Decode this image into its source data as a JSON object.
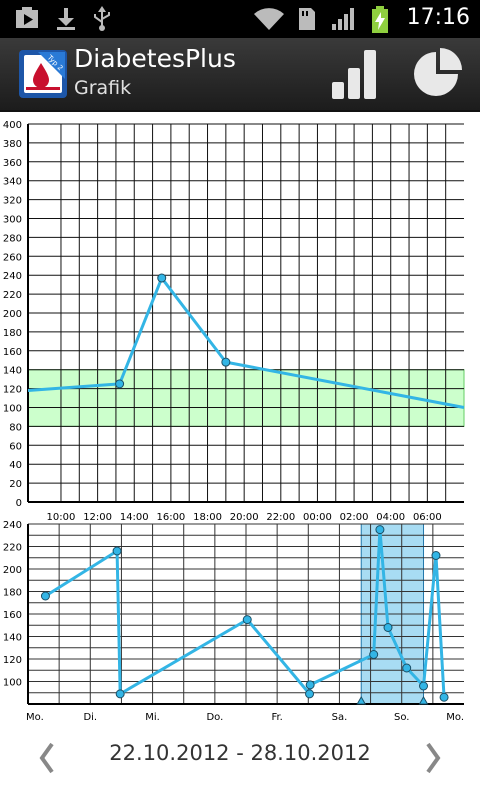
{
  "status_bar": {
    "time": "17:16",
    "icons": [
      "media-play-icon",
      "download-icon",
      "usb-icon",
      "wifi-icon",
      "sd-card-icon",
      "signal-icon",
      "battery-charging-icon"
    ]
  },
  "action_bar": {
    "title": "DiabetesPlus",
    "subtitle": "Grafik",
    "logo_badge": "Typ 2",
    "actions": [
      "bar-chart-icon",
      "pie-chart-icon"
    ]
  },
  "colors": {
    "line": "#33b5e5",
    "target_band": "#ccffcc",
    "target_band_border": "#66cc66",
    "selection": "#a8dcf3",
    "selection_border": "#2277aa"
  },
  "chart_data": [
    {
      "type": "line",
      "ylim": [
        0,
        400
      ],
      "yticks": [
        "0",
        "20",
        "40",
        "60",
        "80",
        "100",
        "120",
        "140",
        "160",
        "180",
        "200",
        "220",
        "240",
        "260",
        "280",
        "300",
        "320",
        "340",
        "360",
        "380",
        "400"
      ],
      "xticks": [
        "10:00",
        "12:00",
        "14:00",
        "16:00",
        "18:00",
        "20:00",
        "22:00",
        "00:00",
        "02:00",
        "04:00",
        "06:00"
      ],
      "xlim_hours": [
        8.2,
        32.0
      ],
      "target_range": [
        80,
        140
      ],
      "series": [
        {
          "x_hours": [
            8.2,
            13.2,
            15.5,
            19.0,
            32.0
          ],
          "values": [
            118,
            125,
            237,
            148,
            100
          ],
          "markers": [
            false,
            true,
            true,
            true,
            false
          ]
        }
      ]
    },
    {
      "type": "line",
      "ylim": [
        80,
        240
      ],
      "yticks": [
        "100",
        "120",
        "140",
        "160",
        "180",
        "200",
        "220",
        "240"
      ],
      "xticks": [
        "Mo.",
        "Di.",
        "Mi.",
        "Do.",
        "Fr.",
        "Sa.",
        "So.",
        "Mo."
      ],
      "xlim_days": [
        0,
        7
      ],
      "selection_days": [
        5.35,
        6.35
      ],
      "series": [
        {
          "x_days": [
            0.28,
            1.43,
            1.48,
            3.52,
            4.52,
            4.53,
            5.55,
            5.65,
            5.78,
            6.08,
            6.35,
            6.55,
            6.68
          ],
          "values": [
            176,
            216,
            89,
            155,
            89,
            97,
            124,
            235,
            148,
            112,
            96,
            212,
            86
          ]
        }
      ]
    }
  ],
  "footer": {
    "date_range": "22.10.2012 - 28.10.2012",
    "prev_glyph": "❬",
    "next_glyph": "❭"
  }
}
